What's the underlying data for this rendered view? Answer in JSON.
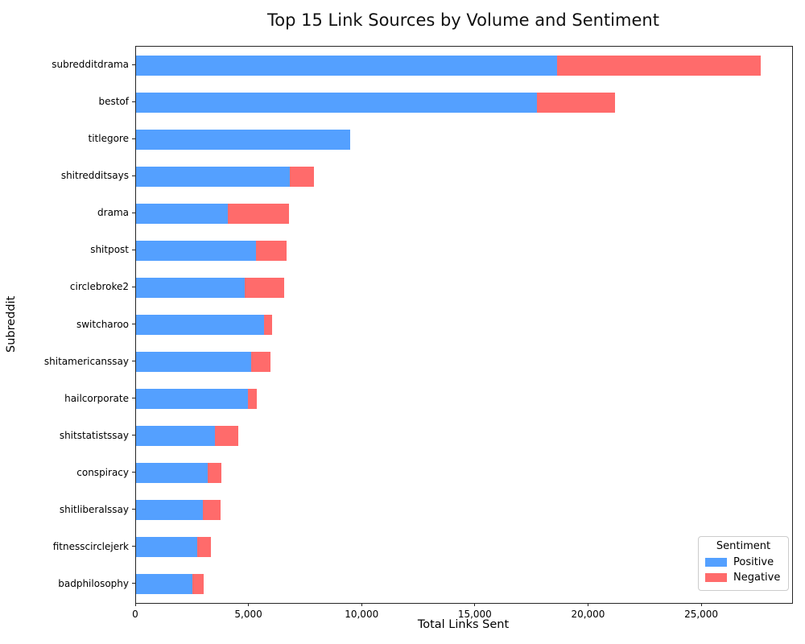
{
  "chart_data": {
    "type": "bar",
    "orientation": "horizontal",
    "stacked": true,
    "title": "Top 15 Link Sources by Volume and Sentiment",
    "xlabel": "Total Links Sent",
    "ylabel": "Subreddit",
    "categories": [
      "subredditdrama",
      "bestof",
      "titlegore",
      "shitredditsays",
      "drama",
      "shitpost",
      "circlebroke2",
      "switcharoo",
      "shitamericanssay",
      "hailcorporate",
      "shitstatistssay",
      "conspiracy",
      "shitliberalssay",
      "fitnesscirclejerk",
      "badphilosophy"
    ],
    "series": [
      {
        "name": "Positive",
        "color": "#54a0ff",
        "values": [
          18600,
          17700,
          9450,
          6800,
          4050,
          5300,
          4800,
          5670,
          5100,
          4950,
          3500,
          3150,
          2950,
          2700,
          2500
        ]
      },
      {
        "name": "Negative",
        "color": "#ff6b6b",
        "values": [
          9000,
          3450,
          0,
          1050,
          2700,
          1350,
          1750,
          330,
          850,
          400,
          1000,
          630,
          800,
          590,
          470
        ]
      }
    ],
    "xlim": [
      0,
      28980
    ],
    "xticks": [
      0,
      5000,
      10000,
      15000,
      20000,
      25000
    ],
    "xtick_labels": [
      "0",
      "5,000",
      "10,000",
      "15,000",
      "20,000",
      "25,000"
    ],
    "grid": false,
    "legend": {
      "title": "Sentiment",
      "position": "lower right",
      "entries": [
        "Positive",
        "Negative"
      ]
    }
  }
}
